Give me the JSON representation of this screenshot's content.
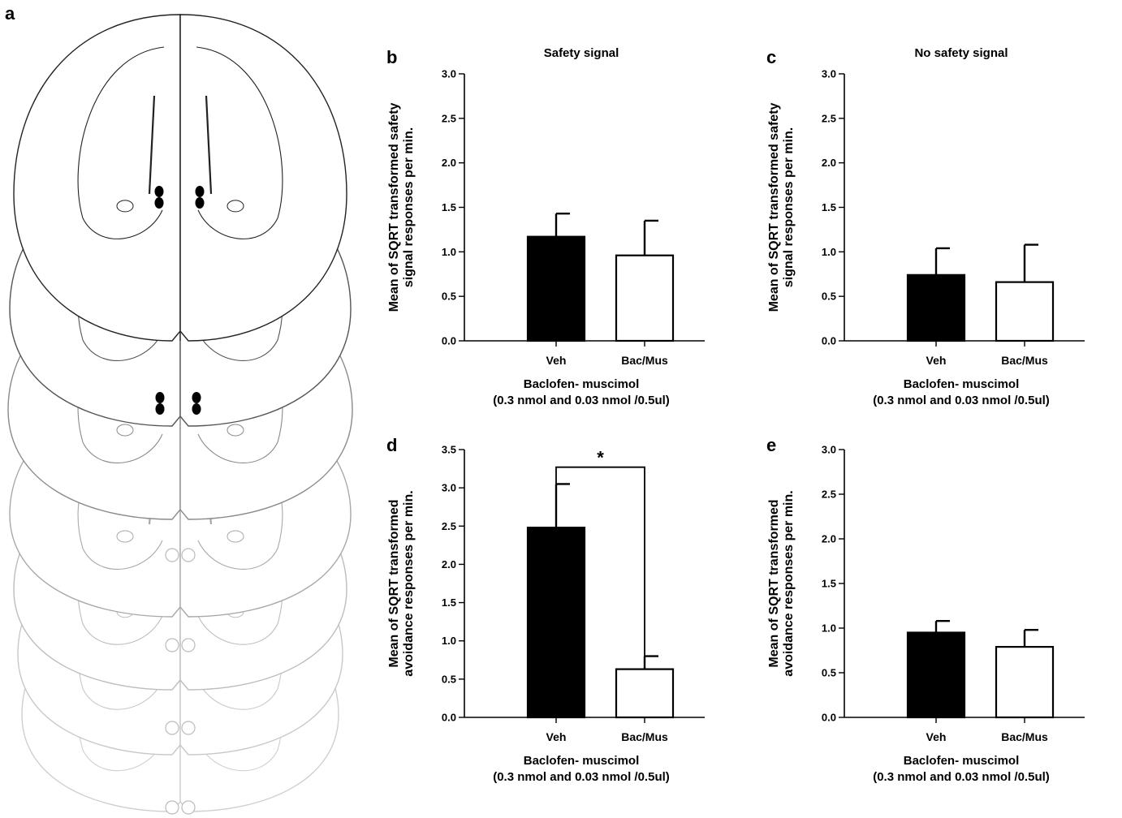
{
  "panel_labels": {
    "a": "a"
  },
  "chart_data": [
    {
      "panel": "b",
      "type": "bar",
      "title": "Safety signal",
      "ylabel_line1": "Mean of SQRT transformed safety",
      "ylabel_line2": "signal responses per min.",
      "xlabel_line1": "Baclofen- muscimol",
      "xlabel_line2": "(0.3 nmol and 0.03 nmol /0.5ul)",
      "categories": [
        "Veh",
        "Bac/Mus"
      ],
      "values": [
        1.17,
        0.96
      ],
      "errors": [
        0.26,
        0.39
      ],
      "fills": [
        "#000000",
        "#ffffff"
      ],
      "ylim": [
        0,
        3.0
      ],
      "yticks": [
        "0.0",
        "0.5",
        "1.0",
        "1.5",
        "2.0",
        "2.5",
        "3.0"
      ],
      "significance": null
    },
    {
      "panel": "c",
      "type": "bar",
      "title": "No safety signal",
      "ylabel_line1": "Mean of SQRT transformed safety",
      "ylabel_line2": "signal responses per min.",
      "xlabel_line1": "Baclofen- muscimol",
      "xlabel_line2": "(0.3 nmol and 0.03 nmol /0.5ul)",
      "categories": [
        "Veh",
        "Bac/Mus"
      ],
      "values": [
        0.74,
        0.66
      ],
      "errors": [
        0.3,
        0.42
      ],
      "fills": [
        "#000000",
        "#ffffff"
      ],
      "ylim": [
        0,
        3.0
      ],
      "yticks": [
        "0.0",
        "0.5",
        "1.0",
        "1.5",
        "2.0",
        "2.5",
        "3.0"
      ],
      "significance": null
    },
    {
      "panel": "d",
      "type": "bar",
      "title": "",
      "ylabel_line1": "Mean of SQRT transformed",
      "ylabel_line2": "avoidance responses per min.",
      "xlabel_line1": "Baclofen- muscimol",
      "xlabel_line2": "(0.3 nmol and 0.03 nmol /0.5ul)",
      "categories": [
        "Veh",
        "Bac/Mus"
      ],
      "values": [
        2.48,
        0.63
      ],
      "errors": [
        0.57,
        0.17
      ],
      "fills": [
        "#000000",
        "#ffffff"
      ],
      "ylim": [
        0,
        3.5
      ],
      "yticks": [
        "0.0",
        "0.5",
        "1.0",
        "1.5",
        "2.0",
        "2.5",
        "3.0",
        "3.5"
      ],
      "significance": {
        "symbol": "*",
        "level": 3.27
      }
    },
    {
      "panel": "e",
      "type": "bar",
      "title": "",
      "ylabel_line1": "Mean of SQRT transformed",
      "ylabel_line2": "avoidance responses per min.",
      "xlabel_line1": "Baclofen- muscimol",
      "xlabel_line2": "(0.3 nmol and 0.03 nmol /0.5ul)",
      "categories": [
        "Veh",
        "Bac/Mus"
      ],
      "values": [
        0.95,
        0.79
      ],
      "errors": [
        0.13,
        0.19
      ],
      "fills": [
        "#000000",
        "#ffffff"
      ],
      "ylim": [
        0,
        3.0
      ],
      "yticks": [
        "0.0",
        "0.5",
        "1.0",
        "1.5",
        "2.0",
        "2.5",
        "3.0"
      ],
      "significance": null
    }
  ]
}
